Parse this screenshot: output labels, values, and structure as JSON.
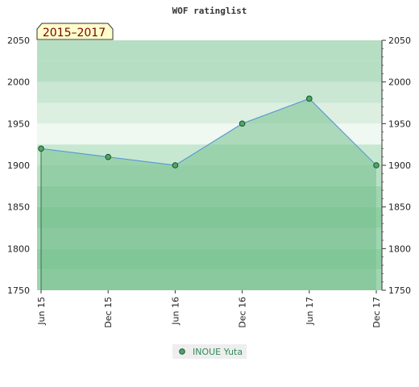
{
  "chart_data": {
    "type": "area",
    "title": "WOF ratinglist",
    "period_badge": "2015–2017",
    "categories": [
      "Jun 15",
      "Dec 15",
      "Jun 16",
      "Dec 16",
      "Jun 17",
      "Dec 17"
    ],
    "series": [
      {
        "name": "INOUE Yuta",
        "values": [
          1920,
          1910,
          1900,
          1950,
          1980,
          1900
        ]
      }
    ],
    "ylim": [
      1750,
      2050
    ],
    "yticks": [
      1750,
      1800,
      1850,
      1900,
      1950,
      2000,
      2050
    ],
    "grid": true,
    "legend_position": "bottom-center",
    "colors": {
      "line": "#5b9bd5",
      "fill": "#77c08e",
      "marker": "#4aa866",
      "badge_bg": "#ffffcc"
    }
  }
}
